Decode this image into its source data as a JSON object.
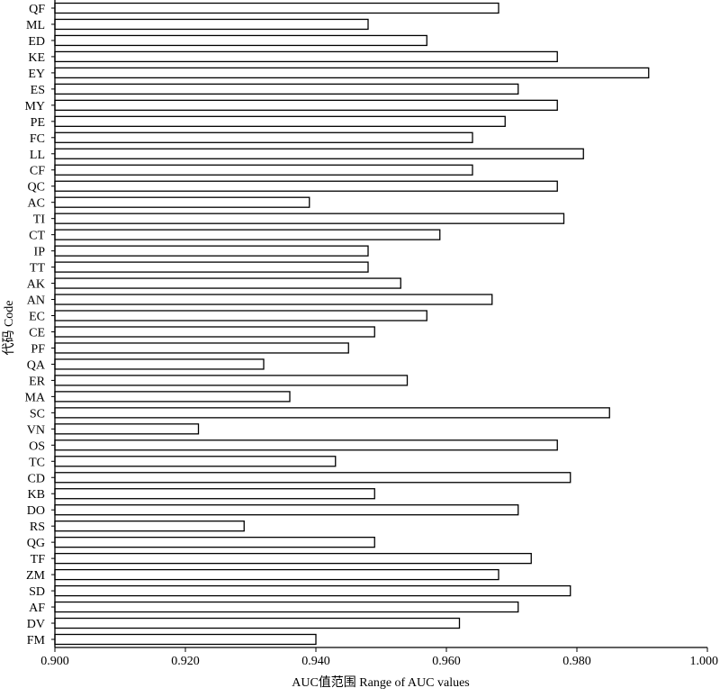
{
  "chart_data": {
    "type": "bar",
    "orientation": "horizontal",
    "xlabel": "AUC值范围 Range of AUC values",
    "ylabel": "代码 Code",
    "xlim": [
      0.9,
      1.0
    ],
    "xticks": [
      "0.900",
      "0.920",
      "0.940",
      "0.960",
      "0.980",
      "1.000"
    ],
    "grid": false,
    "categories": [
      "QF",
      "ML",
      "ED",
      "KE",
      "EY",
      "ES",
      "MY",
      "PE",
      "FC",
      "LL",
      "CF",
      "QC",
      "AC",
      "TI",
      "CT",
      "IP",
      "TT",
      "AK",
      "AN",
      "EC",
      "CE",
      "PF",
      "QA",
      "ER",
      "MA",
      "SC",
      "VN",
      "OS",
      "TC",
      "CD",
      "KB",
      "DO",
      "RS",
      "QG",
      "TF",
      "ZM",
      "SD",
      "AF",
      "DV",
      "FM"
    ],
    "values": [
      0.968,
      0.948,
      0.957,
      0.977,
      0.991,
      0.971,
      0.977,
      0.969,
      0.964,
      0.981,
      0.964,
      0.977,
      0.939,
      0.978,
      0.959,
      0.948,
      0.948,
      0.953,
      0.967,
      0.957,
      0.949,
      0.945,
      0.932,
      0.954,
      0.936,
      0.985,
      0.922,
      0.977,
      0.943,
      0.979,
      0.949,
      0.971,
      0.929,
      0.949,
      0.973,
      0.968,
      0.979,
      0.971,
      0.962,
      0.94
    ],
    "colors": {
      "bar_fill": "#ffffff",
      "bar_stroke": "#000000",
      "axis": "#000000"
    }
  }
}
